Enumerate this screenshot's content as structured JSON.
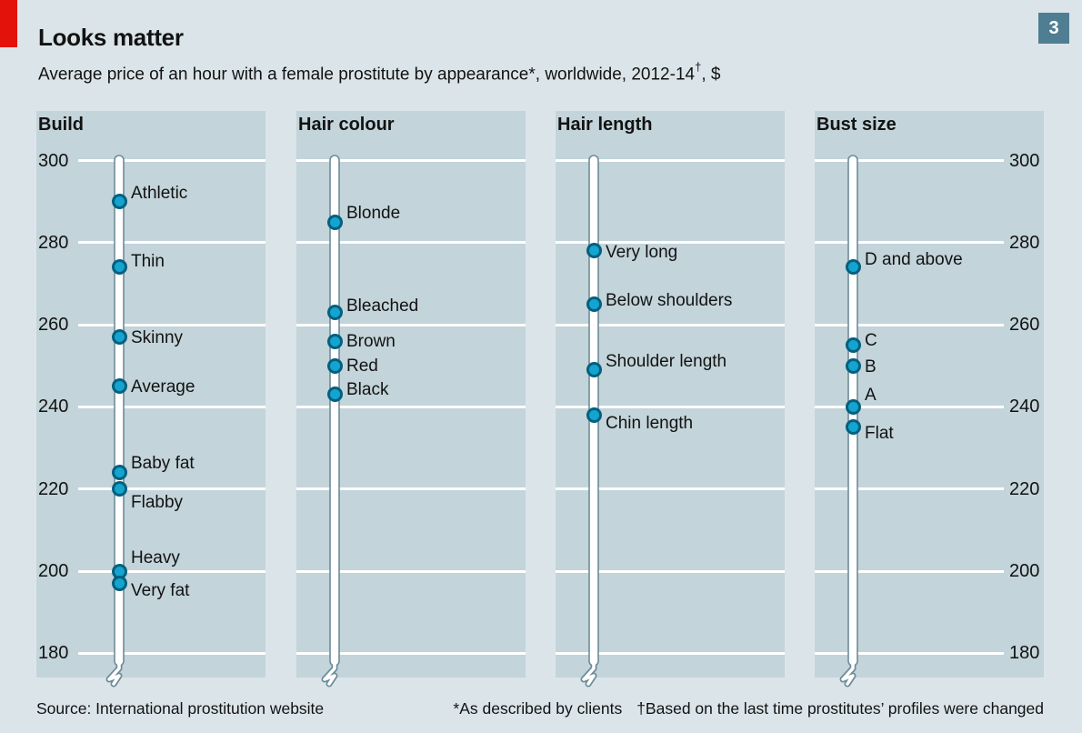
{
  "header": {
    "title": "Looks matter",
    "subtitle_main": "Average price of an hour with a female prostitute by appearance*, worldwide, 2012-14",
    "subtitle_sup": "†",
    "subtitle_tail": ", $",
    "badge": "3"
  },
  "chart_data": {
    "type": "scatter",
    "title": "Looks matter",
    "subtitle": "Average price of an hour with a female prostitute by appearance*, worldwide, 2012-14†, $",
    "unit": "$",
    "axis": {
      "min": 180,
      "max": 300,
      "ticks": [
        300,
        280,
        260,
        240,
        220,
        200,
        180
      ],
      "grid": true
    },
    "panels": [
      {
        "title": "Build",
        "tick_labels": "left",
        "points": [
          {
            "label": "Athletic",
            "value": 290,
            "label_dy": -9
          },
          {
            "label": "Thin",
            "value": 274,
            "label_dy": -6
          },
          {
            "label": "Skinny",
            "value": 257,
            "label_dy": 1
          },
          {
            "label": "Average",
            "value": 245,
            "label_dy": 1
          },
          {
            "label": "Baby fat",
            "value": 224,
            "label_dy": -10
          },
          {
            "label": "Flabby",
            "value": 220,
            "label_dy": 15
          },
          {
            "label": "Heavy",
            "value": 200,
            "label_dy": -15
          },
          {
            "label": "Very fat",
            "value": 197,
            "label_dy": 8
          }
        ]
      },
      {
        "title": "Hair colour",
        "tick_labels": "none",
        "points": [
          {
            "label": "Blonde",
            "value": 285,
            "label_dy": -10
          },
          {
            "label": "Bleached",
            "value": 263,
            "label_dy": -7
          },
          {
            "label": "Brown",
            "value": 256,
            "label_dy": 0
          },
          {
            "label": "Red",
            "value": 250,
            "label_dy": 0
          },
          {
            "label": "Black",
            "value": 243,
            "label_dy": -5
          }
        ]
      },
      {
        "title": "Hair length",
        "tick_labels": "none",
        "points": [
          {
            "label": "Very long",
            "value": 278,
            "label_dy": 2
          },
          {
            "label": "Below shoulders",
            "value": 265,
            "label_dy": -4
          },
          {
            "label": "Shoulder length",
            "value": 249,
            "label_dy": -9
          },
          {
            "label": "Chin length",
            "value": 238,
            "label_dy": 9
          }
        ]
      },
      {
        "title": "Bust size",
        "tick_labels": "right",
        "points": [
          {
            "label": "D and above",
            "value": 274,
            "label_dy": -8
          },
          {
            "label": "C",
            "value": 255,
            "label_dy": -5
          },
          {
            "label": "B",
            "value": 250,
            "label_dy": 1
          },
          {
            "label": "A",
            "value": 240,
            "label_dy": -13
          },
          {
            "label": "Flat",
            "value": 235,
            "label_dy": 7
          }
        ]
      }
    ]
  },
  "footer": {
    "source": "Source: International prostitution website",
    "note1": "*As described by clients",
    "note2": "†Based on the last time prostitutes’ profiles were changed"
  },
  "colors": {
    "page_bg": "#dbe5e9",
    "panel_bg": "#c3d4da",
    "grid": "#ffffff",
    "dot_fill": "#14a4cf",
    "dot_ring": "#04607e",
    "pole_outline": "#6e8c9a",
    "pole_fill": "#ffffff",
    "red_tab": "#e3120b",
    "badge_bg": "#4f7e92",
    "text": "#121212"
  }
}
